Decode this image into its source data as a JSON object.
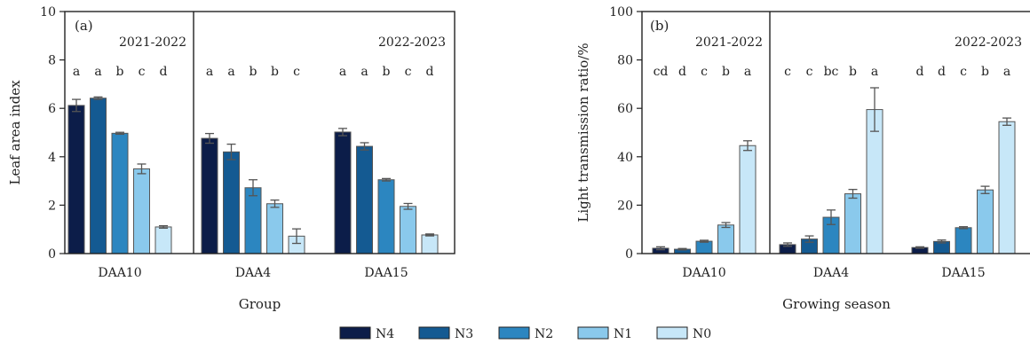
{
  "colors": {
    "N4": "#0c1d49",
    "N3": "#145a92",
    "N2": "#2c86c0",
    "N1": "#8ac9ec",
    "N0": "#c7e7f8",
    "axis": "#222222",
    "bar_edge": "#555555",
    "error_bar": "#555555"
  },
  "legend": {
    "placement": "bottom-center",
    "items": [
      "N4",
      "N3",
      "N2",
      "N1",
      "N0"
    ]
  },
  "chart_data": [
    {
      "type": "bar",
      "panel_label": "(a)",
      "xlabel": "Group",
      "ylabel": "Leaf area index",
      "ylim": [
        0,
        10
      ],
      "yticks": [
        0,
        2,
        4,
        6,
        8,
        10
      ],
      "grid": false,
      "categories": [
        "DAA10",
        "DAA4",
        "DAA15"
      ],
      "season_labels": [
        "2021-2022",
        "2022-2023"
      ],
      "series": [
        {
          "name": "N4",
          "values": [
            6.12,
            4.76,
            5.02
          ],
          "errors": [
            0.25,
            0.2,
            0.15
          ]
        },
        {
          "name": "N3",
          "values": [
            6.42,
            4.2,
            4.43
          ],
          "errors": [
            0.05,
            0.32,
            0.15
          ]
        },
        {
          "name": "N2",
          "values": [
            4.97,
            2.72,
            3.05
          ],
          "errors": [
            0.04,
            0.33,
            0.05
          ]
        },
        {
          "name": "N1",
          "values": [
            3.5,
            2.06,
            1.95
          ],
          "errors": [
            0.2,
            0.15,
            0.12
          ]
        },
        {
          "name": "N0",
          "values": [
            1.1,
            0.72,
            0.77
          ],
          "errors": [
            0.05,
            0.3,
            0.04
          ]
        }
      ],
      "significance_letters": [
        [
          "a",
          "a",
          "b",
          "c",
          "d"
        ],
        [
          "a",
          "a",
          "b",
          "b",
          "c"
        ],
        [
          "a",
          "a",
          "b",
          "c",
          "d"
        ]
      ]
    },
    {
      "type": "bar",
      "panel_label": "(b)",
      "xlabel": "Growing season",
      "ylabel": "Light transmission ratio/%",
      "ylim": [
        0,
        100
      ],
      "yticks": [
        0,
        20,
        40,
        60,
        80,
        100
      ],
      "grid": false,
      "categories": [
        "DAA10",
        "DAA4",
        "DAA15"
      ],
      "season_labels": [
        "2021-2022",
        "2022-2023"
      ],
      "series": [
        {
          "name": "N4",
          "values": [
            2.2,
            3.7,
            2.5
          ],
          "errors": [
            0.6,
            0.7,
            0.3
          ]
        },
        {
          "name": "N3",
          "values": [
            1.8,
            6.0,
            5.0
          ],
          "errors": [
            0.3,
            1.3,
            0.6
          ]
        },
        {
          "name": "N2",
          "values": [
            5.1,
            15.0,
            10.7
          ],
          "errors": [
            0.4,
            3.0,
            0.4
          ]
        },
        {
          "name": "N1",
          "values": [
            11.8,
            24.7,
            26.3
          ],
          "errors": [
            1.0,
            1.8,
            1.5
          ]
        },
        {
          "name": "N0",
          "values": [
            44.6,
            59.5,
            54.5
          ],
          "errors": [
            2.0,
            9.0,
            1.5
          ]
        }
      ],
      "significance_letters": [
        [
          "cd",
          "d",
          "c",
          "b",
          "a"
        ],
        [
          "c",
          "c",
          "bc",
          "b",
          "a"
        ],
        [
          "d",
          "d",
          "c",
          "b",
          "a"
        ]
      ]
    }
  ]
}
